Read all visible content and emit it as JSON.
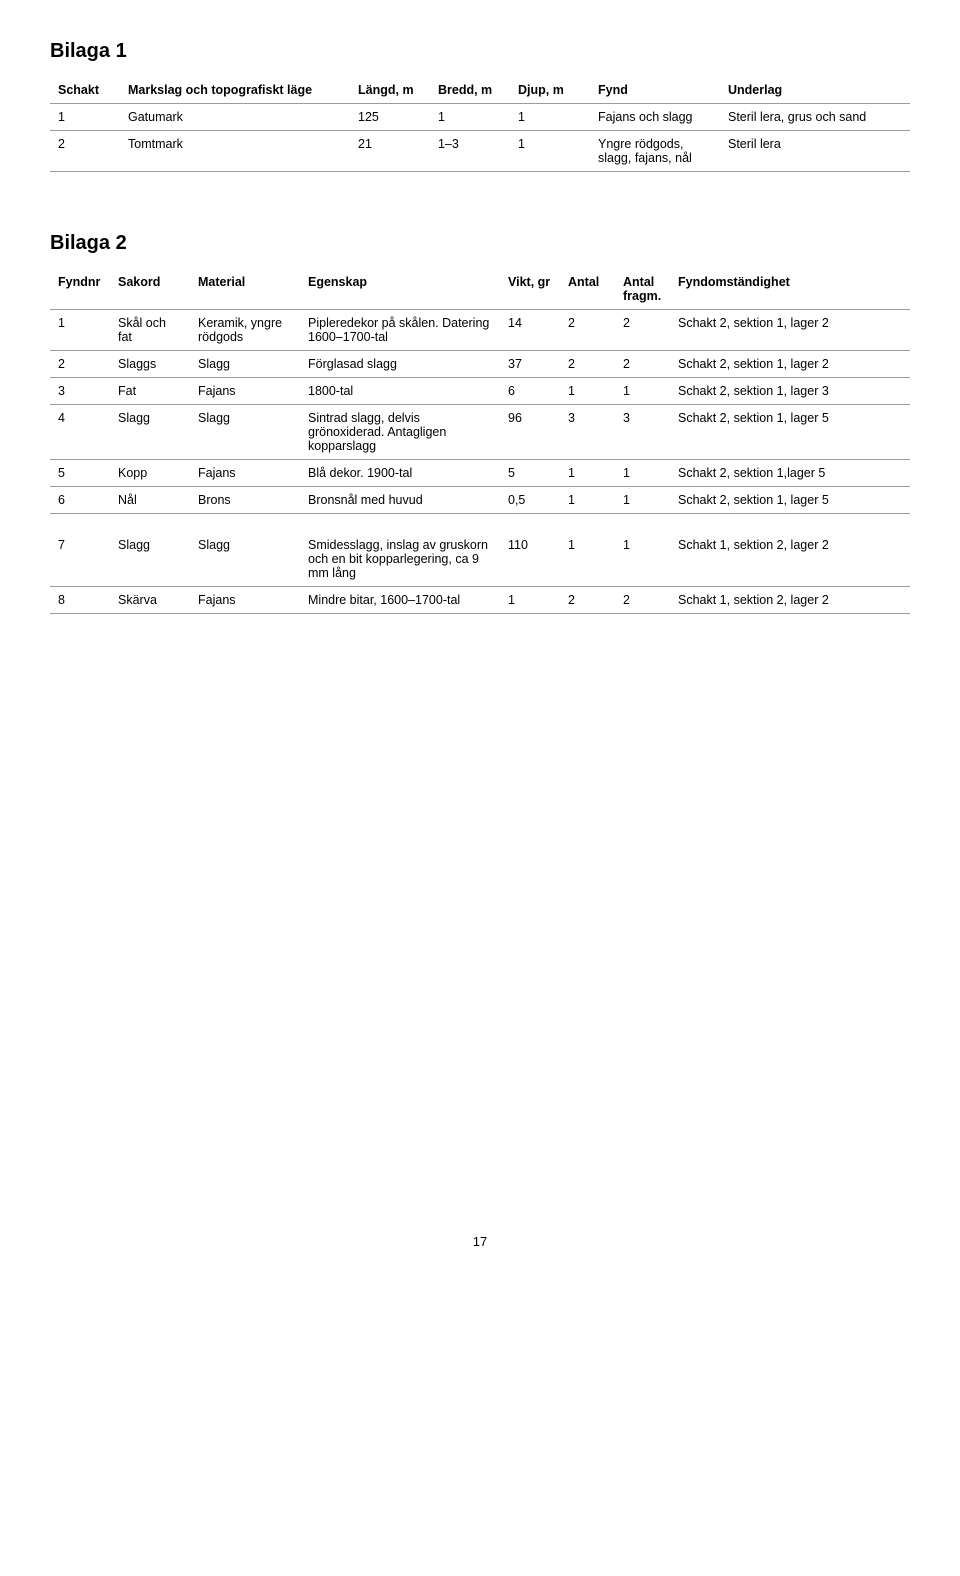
{
  "bilaga1": {
    "heading": "Bilaga 1",
    "columns": [
      "Schakt",
      "Markslag och topografiskt läge",
      "Längd, m",
      "Bredd, m",
      "Djup, m",
      "Fynd",
      "Underlag"
    ],
    "rows": [
      [
        "1",
        "Gatumark",
        "125",
        "1",
        "1",
        "Fajans och slagg",
        "Steril lera, grus och sand"
      ],
      [
        "2",
        "Tomtmark",
        "21",
        "1–3",
        "1",
        "Yngre rödgods, slagg, fajans, nål",
        "Steril lera"
      ]
    ]
  },
  "bilaga2": {
    "heading": "Bilaga 2",
    "columns": [
      "Fyndnr",
      "Sakord",
      "Material",
      "Egenskap",
      "Vikt, gr",
      "Antal",
      "Antal fragm.",
      "Fyndomständighet"
    ],
    "rows1": [
      [
        "1",
        "Skål och fat",
        "Keramik, yngre rödgods",
        "Pipleredekor på skålen. Datering 1600–1700-tal",
        "14",
        "2",
        "2",
        "Schakt 2, sektion 1, lager 2"
      ],
      [
        "2",
        "Slaggs",
        "Slagg",
        "Förglasad slagg",
        "37",
        "2",
        "2",
        "Schakt 2, sektion 1, lager 2"
      ],
      [
        "3",
        "Fat",
        "Fajans",
        "1800-tal",
        "6",
        "1",
        "1",
        "Schakt 2, sektion 1, lager 3"
      ],
      [
        "4",
        "Slagg",
        "Slagg",
        "Sintrad slagg, delvis grönoxiderad. Antagligen kopparslagg",
        "96",
        "3",
        "3",
        "Schakt 2, sektion 1, lager 5"
      ],
      [
        "5",
        "Kopp",
        "Fajans",
        "Blå dekor. 1900-tal",
        "5",
        "1",
        "1",
        "Schakt 2, sektion 1,lager 5"
      ],
      [
        "6",
        "Nål",
        "Brons",
        "Bronsnål med huvud",
        "0,5",
        "1",
        "1",
        "Schakt 2, sektion 1, lager 5"
      ]
    ],
    "rows2": [
      [
        "7",
        "Slagg",
        "Slagg",
        "Smidesslagg, inslag av gruskorn och en bit kopparlegering, ca 9 mm lång",
        "110",
        "1",
        "1",
        "Schakt 1, sektion 2, lager 2"
      ],
      [
        "8",
        "Skärva",
        "Fajans",
        "Mindre bitar, 1600–1700-tal",
        "1",
        "2",
        "2",
        "Schakt 1, sektion 2, lager 2"
      ]
    ]
  },
  "page_number": "17"
}
